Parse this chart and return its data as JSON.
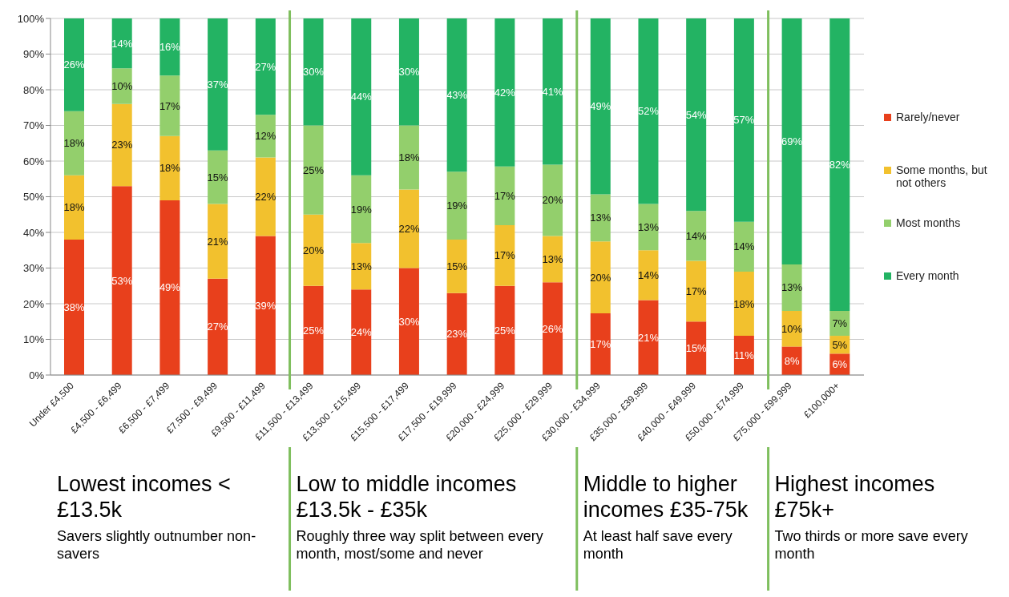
{
  "chart_data": {
    "type": "bar",
    "stacked": true,
    "grid": "y",
    "legend": "right",
    "categories": [
      "Under £4,500",
      "£4,500 - £6,499",
      "£6,500 - £7,499",
      "£7,500 - £9,499",
      "£9,500 - £11,499",
      "£11,500 - £13,499",
      "£13,500 - £15,499",
      "£15,500 - £17,499",
      "£17,500 - £19,999",
      "£20,000 - £24,999",
      "£25,000 - £29,999",
      "£30,000 - £34,999",
      "£35,000 - £39,999",
      "£40,000 - £49,999",
      "£50,000 - £74,999",
      "£75,000 - £99,999",
      "£100,000+"
    ],
    "ylim": [
      0,
      100
    ],
    "yticks": [
      {
        "value": 0,
        "label": "0%"
      },
      {
        "value": 10,
        "label": "10%"
      },
      {
        "value": 20,
        "label": "20%"
      },
      {
        "value": 30,
        "label": "30%"
      },
      {
        "value": 40,
        "label": "40%"
      },
      {
        "value": 50,
        "label": "50%"
      },
      {
        "value": 60,
        "label": "60%"
      },
      {
        "value": 70,
        "label": "70%"
      },
      {
        "value": 80,
        "label": "80%"
      },
      {
        "value": 90,
        "label": "90%"
      },
      {
        "value": 100,
        "label": "100%"
      }
    ],
    "series": [
      {
        "name": "Rarely/never",
        "color": "#e8401c",
        "values": [
          38,
          53,
          49,
          27,
          39,
          25,
          24,
          30,
          23,
          25,
          26,
          17.3,
          21,
          15,
          11,
          8,
          6
        ],
        "value_labels": [
          "38%",
          "53%",
          "49%",
          "27%",
          "39%",
          "25%",
          "24%",
          "30%",
          "23%",
          "25%",
          "26%",
          "17%",
          "21%",
          "15%",
          "11%",
          "8%",
          "6%"
        ]
      },
      {
        "name": "Some months, but not others",
        "color": "#f2c12e",
        "values": [
          18,
          23,
          18,
          21,
          22,
          20,
          13,
          22,
          15,
          17,
          13,
          20.2,
          14,
          17,
          18,
          10,
          5
        ],
        "value_labels": [
          "18%",
          "23%",
          "18%",
          "21%",
          "22%",
          "20%",
          "13%",
          "22%",
          "15%",
          "17%",
          "13%",
          "20%",
          "14%",
          "17%",
          "18%",
          "10%",
          "5%"
        ]
      },
      {
        "name": "Most months",
        "color": "#93cf6c",
        "values": [
          18,
          10,
          17,
          15,
          12,
          25,
          19,
          18,
          19,
          16.5,
          20,
          13.2,
          13,
          14,
          14,
          13,
          7
        ],
        "value_labels": [
          "18%",
          "10%",
          "17%",
          "15%",
          "12%",
          "25%",
          "19%",
          "18%",
          "19%",
          "17%",
          "20%",
          "13%",
          "13%",
          "14%",
          "14%",
          "13%",
          "7%"
        ]
      },
      {
        "name": "Every month",
        "color": "#23b363",
        "values": [
          26,
          14,
          16,
          37,
          27,
          30,
          44,
          30,
          43,
          41.5,
          41,
          49.3,
          52,
          54,
          57,
          69,
          82
        ],
        "value_labels": [
          "26%",
          "14%",
          "16%",
          "37%",
          "27%",
          "30%",
          "44%",
          "30%",
          "43%",
          "42%",
          "41%",
          "49%",
          "52%",
          "54%",
          "57%",
          "69%",
          "82%"
        ]
      }
    ],
    "annotations": [
      "Lowest incomes < £13.5k",
      "Savers slightly outnumber non-savers",
      "Low to middle incomes £13.5k - £35k",
      "Roughly three way split between every month, most/some and never",
      "Middle to higher incomes £35-75k",
      "At least half save every month",
      "Highest incomes £75k+",
      "Two thirds or more save every month"
    ]
  }
}
